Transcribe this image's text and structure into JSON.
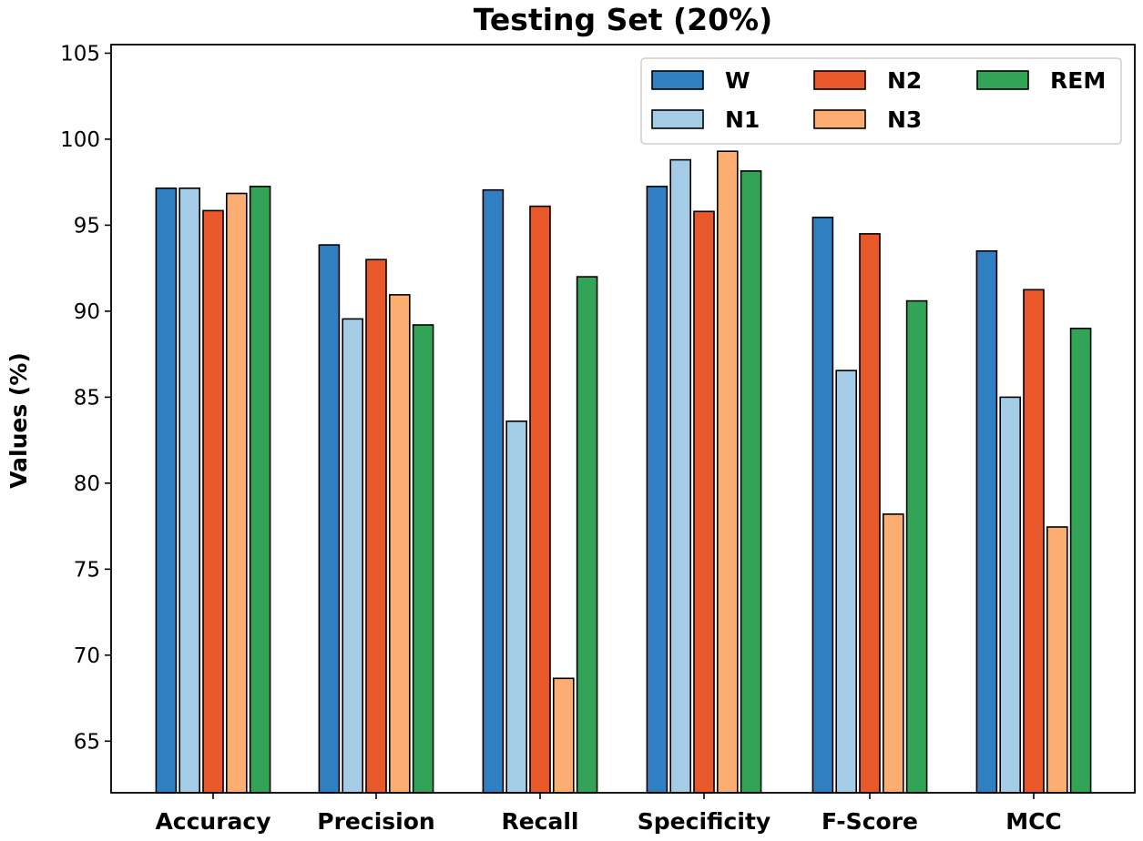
{
  "chart_data": {
    "type": "bar",
    "title": "Testing Set (20%)",
    "xlabel": "",
    "ylabel": "Values (%)",
    "ylim": [
      62,
      105.5
    ],
    "yticks": [
      65,
      70,
      75,
      80,
      85,
      90,
      95,
      100,
      105
    ],
    "categories": [
      "Accuracy",
      "Precision",
      "Recall",
      "Specificity",
      "F-Score",
      "MCC"
    ],
    "series": [
      {
        "name": "W",
        "color": "#2f7fc1",
        "values": [
          97.15,
          93.85,
          97.05,
          97.25,
          95.45,
          93.5
        ]
      },
      {
        "name": "N1",
        "color": "#a4cce6",
        "values": [
          97.15,
          89.55,
          83.6,
          98.8,
          86.55,
          85.0
        ]
      },
      {
        "name": "N2",
        "color": "#e8582a",
        "values": [
          95.85,
          93.0,
          96.1,
          95.8,
          94.5,
          91.25
        ]
      },
      {
        "name": "N3",
        "color": "#fcae72",
        "values": [
          96.85,
          90.95,
          68.65,
          99.3,
          78.2,
          77.45
        ]
      },
      {
        "name": "REM",
        "color": "#33a457",
        "values": [
          97.25,
          89.2,
          92.0,
          98.15,
          90.6,
          89.0
        ]
      }
    ],
    "legend_position": "upper-right",
    "grid": false
  }
}
